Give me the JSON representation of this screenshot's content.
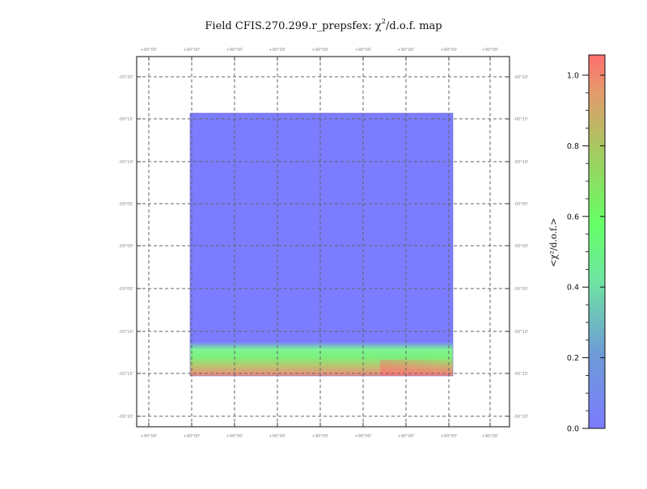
{
  "chart_data": {
    "type": "heatmap",
    "title": "Field CFIS.270.299.r_prepsfex: χ",
    "title_superscript": "2",
    "title_suffix": "/d.o.f. map",
    "x_tick_labels": [
      "+90°00'",
      "+90°00'",
      "+90°00'",
      "+90°00'",
      "+90°00'",
      "+90°00'",
      "+90°00'",
      "+90°00'",
      "+90°00'"
    ],
    "y_tick_labels": [
      "-00°20'",
      "-00°15'",
      "-00°10'",
      "-00°05'",
      "-00°00'",
      "-00°05'",
      "-00°10'",
      "-00°15'",
      "-00°20'"
    ],
    "grid": true,
    "colorbar": {
      "label": "<χ²/d.o.f.>",
      "ticks": [
        "1.0",
        "0.8",
        "0.6",
        "0.4",
        "0.2",
        "0.0"
      ],
      "range": [
        0.0,
        1.0
      ],
      "colors": [
        "#7b7cff",
        "#66ff66",
        "#ff6f6f"
      ]
    },
    "field_values": {
      "description_rows": "bottom-to-top χ²/d.o.f. profile of mapped field",
      "profile": [
        {
          "fraction_from_bottom": 0.0,
          "value": 0.95
        },
        {
          "fraction_from_bottom": 0.02,
          "value": 0.75
        },
        {
          "fraction_from_bottom": 0.05,
          "value": 0.55
        },
        {
          "fraction_from_bottom": 0.08,
          "value": 0.45
        },
        {
          "fraction_from_bottom": 0.11,
          "value": 0.3
        },
        {
          "fraction_from_bottom": 0.13,
          "value": 0.0
        },
        {
          "fraction_from_bottom": 1.0,
          "value": 0.0
        }
      ],
      "right_corner_max": 1.0
    }
  }
}
